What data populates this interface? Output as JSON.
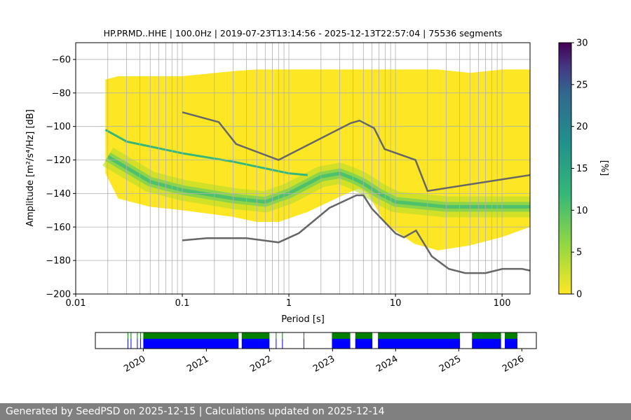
{
  "chart_data": [
    {
      "type": "heatmap",
      "title": "HP.PRMD..HHE | 100.0Hz | 2019-07-23T13:14:56 - 2025-12-13T22:57:04 | 75536 segments",
      "xlabel": "Period [s]",
      "ylabel": "Amplitude [m²/s⁴/Hz] [dB]",
      "xscale": "log",
      "xlim": [
        0.01,
        183
      ],
      "ylim": [
        -200,
        -50
      ],
      "xticks": [
        {
          "v": 0.01,
          "label": "0.01"
        },
        {
          "v": 0.1,
          "label": "0.1"
        },
        {
          "v": 1,
          "label": "1"
        },
        {
          "v": 10,
          "label": "10"
        },
        {
          "v": 100,
          "label": "100"
        }
      ],
      "yticks": [
        -60,
        -80,
        -100,
        -120,
        -140,
        -160,
        -180,
        -200
      ],
      "grid": true,
      "density_envelope": {
        "period": [
          0.019,
          0.025,
          0.05,
          0.1,
          0.3,
          0.5,
          0.8,
          1.5,
          3,
          4.5,
          5.5,
          8,
          15,
          25,
          50,
          100,
          183
        ],
        "upper_db": [
          -72,
          -70,
          -70,
          -70,
          -67,
          -66,
          -66,
          -66,
          -66,
          -66,
          -66,
          -66,
          -66,
          -66,
          -68,
          -66,
          -66
        ],
        "lower_db": [
          -128,
          -143,
          -148,
          -150,
          -154,
          -157,
          -157,
          -151,
          -142,
          -137,
          -140,
          -158,
          -170,
          -174,
          -171,
          -166,
          -160
        ]
      },
      "mode_curve": {
        "period": [
          0.02,
          0.05,
          0.1,
          0.3,
          0.6,
          1,
          2,
          3,
          4,
          5,
          7,
          10,
          30,
          183
        ],
        "db": [
          -118,
          -133,
          -138,
          -143,
          -145,
          -140,
          -130,
          -128,
          -131,
          -134,
          -140,
          -145,
          -148,
          -148
        ]
      },
      "secondary_curve": {
        "period": [
          0.019,
          0.03,
          0.1,
          0.3,
          1,
          1.5
        ],
        "db": [
          -102,
          -109,
          -116,
          -121,
          -128,
          -129
        ]
      },
      "nhnm": {
        "period": [
          0.1,
          0.22,
          0.32,
          0.8,
          3.8,
          4.6,
          6.3,
          7.9,
          15.4,
          20,
          183
        ],
        "db": [
          -91.5,
          -97.4,
          -110.5,
          -120,
          -98,
          -96.5,
          -101,
          -113.5,
          -120,
          -138.5,
          -129
        ]
      },
      "nlnm": {
        "period": [
          0.1,
          0.17,
          0.4,
          0.8,
          1.24,
          2.4,
          4.3,
          5,
          6,
          10,
          12,
          15.6,
          21.9,
          31.6,
          45,
          70,
          101,
          154,
          183
        ],
        "db": [
          -168,
          -166.7,
          -166.7,
          -169.2,
          -163.7,
          -148.6,
          -141.1,
          -141.1,
          -149,
          -163.8,
          -166.2,
          -162.1,
          -177.5,
          -185,
          -187.5,
          -187.5,
          -185,
          -185,
          -186
        ]
      },
      "colorbar": {
        "label": "[%]",
        "range": [
          0,
          30
        ],
        "ticks": [
          0,
          5,
          10,
          15,
          20,
          25,
          30
        ],
        "colormap": "viridis_r"
      }
    },
    {
      "type": "timeline",
      "xlim": [
        2019.24,
        2026.23
      ],
      "xticks": [
        "2020",
        "2021",
        "2022",
        "2023",
        "2024",
        "2025",
        "2026"
      ],
      "xtick_values": [
        2020,
        2021,
        2022,
        2023,
        2024,
        2025,
        2026
      ],
      "coverage_segments": [
        [
          2019.75,
          2019.76
        ],
        [
          2019.8,
          2019.81
        ],
        [
          2019.9,
          2019.91
        ],
        [
          2019.95,
          2019.96
        ],
        [
          2020.0,
          2021.51
        ],
        [
          2021.56,
          2022.0
        ],
        [
          2022.1,
          2022.11
        ],
        [
          2022.2,
          2022.21
        ],
        [
          2022.54,
          2022.55
        ],
        [
          2022.99,
          2023.28
        ],
        [
          2023.36,
          2023.63
        ],
        [
          2023.72,
          2025.02
        ],
        [
          2025.21,
          2025.67
        ],
        [
          2025.73,
          2025.93
        ]
      ],
      "colors": {
        "top": "#008000",
        "bottom": "#0000ff"
      }
    }
  ],
  "footer": {
    "text": "Generated by SeedPSD on 2025-12-15 | Calculations updated on 2025-12-14"
  }
}
